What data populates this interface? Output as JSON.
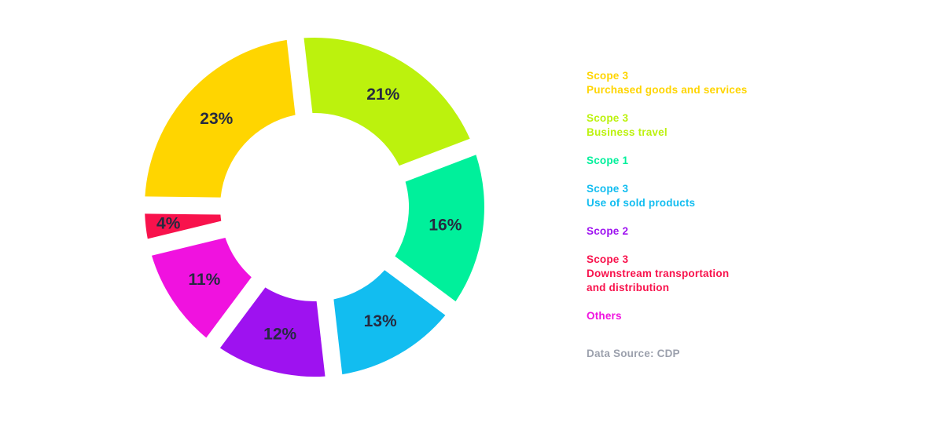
{
  "page": {
    "background_color": "#FFFFFF"
  },
  "chart_data": {
    "type": "pie",
    "subtype": "donut",
    "title": "",
    "unit": "%",
    "order": "clockwise-from-top",
    "rotation_deg": -6.5,
    "legend_position": "right",
    "grid": "off",
    "value_label_color": "#262A40",
    "slices": [
      {
        "name": "scope3-business-travel",
        "label": "Scope 3 - Business travel",
        "value": 21,
        "pct_label": "21%",
        "color": "#BCF20D"
      },
      {
        "name": "scope1",
        "label": "Scope 1",
        "value": 16,
        "pct_label": "16%",
        "color": "#00F09B"
      },
      {
        "name": "scope3-use-of-sold-products",
        "label": "Scope 3 - Use of sold products",
        "value": 13,
        "pct_label": "13%",
        "color": "#12BDF0"
      },
      {
        "name": "scope2",
        "label": "Scope 2",
        "value": 12,
        "pct_label": "12%",
        "color": "#9E12F0"
      },
      {
        "name": "others",
        "label": "Others",
        "value": 11,
        "pct_label": "11%",
        "color": "#F012DF"
      },
      {
        "name": "scope3-downstream-transportation",
        "label": "Scope 3 - Downstream transportation and distribution",
        "value": 4,
        "pct_label": "4%",
        "color": "#F8124C",
        "label_radius": 187
      },
      {
        "name": "scope3-purchased-goods",
        "label": "Scope 3 - Purchased goods and services",
        "value": 23,
        "pct_label": "23%",
        "color": "#FFD500"
      }
    ]
  },
  "legend": {
    "items": [
      {
        "lines": [
          "Scope 3",
          "Purchased goods and services"
        ],
        "color": "#FFD500"
      },
      {
        "lines": [
          "Scope 3",
          "Business travel"
        ],
        "color": "#BCF20D"
      },
      {
        "lines": [
          "Scope 1"
        ],
        "color": "#00F09B"
      },
      {
        "lines": [
          "Scope 3",
          "Use of sold products"
        ],
        "color": "#12BDF0"
      },
      {
        "lines": [
          "Scope 2"
        ],
        "color": "#9E12F0"
      },
      {
        "lines": [
          "Scope 3",
          "Downstream transportation",
          "and distribution"
        ],
        "color": "#F8124C"
      },
      {
        "lines": [
          "Others"
        ],
        "color": "#F012DF"
      }
    ],
    "source": {
      "text": "Data Source: CDP",
      "color": "#9CA1AD"
    }
  }
}
